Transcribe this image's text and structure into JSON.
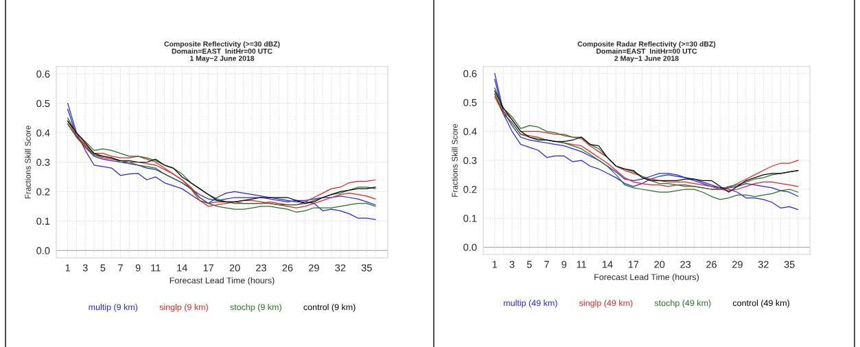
{
  "chart_data": [
    {
      "type": "line",
      "title": "Composite Reflectivity (>=30 dBZ)",
      "subtitle": "Domain=EAST  InitHr=00 UTC\n1 May−2 June 2018",
      "xlabel": "Forecast Lead Time (hours)",
      "ylabel": "Fractions Skill Score",
      "x": [
        1,
        2,
        3,
        4,
        5,
        6,
        7,
        8,
        9,
        10,
        11,
        12,
        13,
        14,
        15,
        16,
        17,
        18,
        19,
        20,
        21,
        22,
        23,
        24,
        25,
        26,
        27,
        28,
        29,
        30,
        31,
        32,
        33,
        34,
        35,
        36
      ],
      "xlim": [
        -0.3,
        37.4
      ],
      "ylim": [
        -0.025,
        0.625
      ],
      "xticks": [
        1,
        {
          "value": 2,
          "label": null
        },
        3,
        {
          "value": 4,
          "label": null
        },
        5,
        {
          "value": 6,
          "label": null
        },
        7,
        {
          "value": 8,
          "label": null
        },
        9,
        {
          "value": 10,
          "label": null
        },
        11,
        {
          "value": 12,
          "label": null
        },
        {
          "value": 13,
          "label": null
        },
        14,
        {
          "value": 15,
          "label": null
        },
        {
          "value": 16,
          "label": null
        },
        17,
        {
          "value": 18,
          "label": null
        },
        {
          "value": 19,
          "label": null
        },
        20,
        {
          "value": 21,
          "label": null
        },
        {
          "value": 22,
          "label": null
        },
        23,
        {
          "value": 24,
          "label": null
        },
        {
          "value": 25,
          "label": null
        },
        26,
        {
          "value": 27,
          "label": null
        },
        {
          "value": 28,
          "label": null
        },
        29,
        {
          "value": 30,
          "label": null
        },
        {
          "value": 31,
          "label": null
        },
        32,
        {
          "value": 33,
          "label": null
        },
        {
          "value": 34,
          "label": null
        },
        35,
        {
          "value": 36,
          "label": null
        }
      ],
      "yticks": [
        {
          "value": 0,
          "label": "0.0"
        },
        0.1,
        0.2,
        0.3,
        0.4,
        0.5,
        0.6
      ],
      "grid": true,
      "legend": "bottom",
      "line_style": "solid",
      "marker": "none",
      "ref_lines": [
        {
          "axis": "y",
          "value": 0,
          "color": "#a0a0a0"
        }
      ],
      "series": [
        {
          "name": "multip (9 km)",
          "color": "#2424e0",
          "values": [
            0.48,
            0.39,
            0.35,
            0.32,
            0.31,
            0.305,
            0.3,
            0.295,
            0.29,
            0.28,
            0.275,
            0.26,
            0.245,
            0.23,
            0.21,
            0.19,
            0.175,
            0.17,
            0.175,
            0.18,
            0.18,
            0.18,
            0.18,
            0.175,
            0.17,
            0.165,
            0.17,
            0.17,
            0.175,
            0.18,
            0.18,
            0.185,
            0.18,
            0.175,
            0.165,
            0.155
          ]
        },
        {
          "color": "#2424e0",
          "values": [
            0.5,
            0.4,
            0.34,
            0.29,
            0.285,
            0.28,
            0.255,
            0.26,
            0.262,
            0.24,
            0.25,
            0.23,
            0.22,
            0.21,
            0.19,
            0.17,
            0.16,
            0.18,
            0.195,
            0.2,
            0.195,
            0.19,
            0.185,
            0.18,
            0.175,
            0.17,
            0.165,
            0.165,
            0.16,
            0.135,
            0.14,
            0.135,
            0.125,
            0.11,
            0.11,
            0.105
          ]
        },
        {
          "name": "singlp (9 km)",
          "color": "#e02424",
          "values": [
            0.44,
            0.39,
            0.36,
            0.33,
            0.33,
            0.32,
            0.315,
            0.315,
            0.32,
            0.31,
            0.3,
            0.28,
            0.26,
            0.24,
            0.215,
            0.18,
            0.16,
            0.165,
            0.165,
            0.165,
            0.16,
            0.16,
            0.16,
            0.165,
            0.16,
            0.155,
            0.155,
            0.165,
            0.18,
            0.195,
            0.21,
            0.215,
            0.23,
            0.235,
            0.235,
            0.24
          ]
        },
        {
          "color": "#e02424",
          "values": [
            0.43,
            0.385,
            0.35,
            0.325,
            0.315,
            0.31,
            0.305,
            0.3,
            0.3,
            0.295,
            0.29,
            0.275,
            0.26,
            0.24,
            0.21,
            0.17,
            0.15,
            0.155,
            0.16,
            0.165,
            0.17,
            0.17,
            0.165,
            0.16,
            0.155,
            0.15,
            0.145,
            0.15,
            0.16,
            0.17,
            0.18,
            0.19,
            0.195,
            0.19,
            0.185,
            0.175
          ]
        },
        {
          "name": "stochp (9 km)",
          "color": "#247024",
          "values": [
            0.43,
            0.385,
            0.355,
            0.325,
            0.32,
            0.315,
            0.3,
            0.3,
            0.29,
            0.285,
            0.28,
            0.26,
            0.245,
            0.23,
            0.21,
            0.18,
            0.16,
            0.15,
            0.145,
            0.14,
            0.14,
            0.145,
            0.15,
            0.15,
            0.145,
            0.14,
            0.13,
            0.135,
            0.145,
            0.145,
            0.145,
            0.15,
            0.155,
            0.16,
            0.16,
            0.15
          ]
        },
        {
          "color": "#247024",
          "values": [
            0.45,
            0.4,
            0.37,
            0.34,
            0.345,
            0.34,
            0.33,
            0.32,
            0.32,
            0.315,
            0.305,
            0.29,
            0.28,
            0.26,
            0.23,
            0.21,
            0.19,
            0.175,
            0.165,
            0.16,
            0.16,
            0.16,
            0.16,
            0.16,
            0.155,
            0.155,
            0.155,
            0.16,
            0.17,
            0.18,
            0.19,
            0.195,
            0.205,
            0.215,
            0.215,
            0.21
          ]
        },
        {
          "name": "control (9 km)",
          "color": "#000000",
          "values": [
            0.44,
            0.4,
            0.365,
            0.33,
            0.32,
            0.315,
            0.305,
            0.305,
            0.3,
            0.3,
            0.31,
            0.29,
            0.28,
            0.25,
            0.23,
            0.21,
            0.19,
            0.17,
            0.165,
            0.165,
            0.17,
            0.175,
            0.18,
            0.18,
            0.18,
            0.18,
            0.17,
            0.16,
            0.165,
            0.18,
            0.19,
            0.2,
            0.205,
            0.21,
            0.21,
            0.215
          ]
        }
      ]
    },
    {
      "type": "line",
      "title": "Composite Radar Reflectivity (>=30 dBZ)",
      "subtitle": "Domain=EAST  InitHr=00 UTC\n2 May−1 June 2018",
      "xlabel": "Forecast Lead Time (hours)",
      "ylabel": "Fractions Skill Score",
      "x": [
        1,
        2,
        3,
        4,
        5,
        6,
        7,
        8,
        9,
        10,
        11,
        12,
        13,
        14,
        15,
        16,
        17,
        18,
        19,
        20,
        21,
        22,
        23,
        24,
        25,
        26,
        27,
        28,
        29,
        30,
        31,
        32,
        33,
        34,
        35,
        36
      ],
      "xlim": [
        -0.33,
        37.36
      ],
      "ylim": [
        -0.025,
        0.624
      ],
      "xticks": [
        1,
        {
          "value": 2,
          "label": null
        },
        3,
        {
          "value": 4,
          "label": null
        },
        5,
        {
          "value": 6,
          "label": null
        },
        7,
        {
          "value": 8,
          "label": null
        },
        9,
        {
          "value": 10,
          "label": null
        },
        11,
        {
          "value": 12,
          "label": null
        },
        {
          "value": 13,
          "label": null
        },
        14,
        {
          "value": 15,
          "label": null
        },
        {
          "value": 16,
          "label": null
        },
        17,
        {
          "value": 18,
          "label": null
        },
        {
          "value": 19,
          "label": null
        },
        20,
        {
          "value": 21,
          "label": null
        },
        {
          "value": 22,
          "label": null
        },
        23,
        {
          "value": 24,
          "label": null
        },
        {
          "value": 25,
          "label": null
        },
        26,
        {
          "value": 27,
          "label": null
        },
        {
          "value": 28,
          "label": null
        },
        29,
        {
          "value": 30,
          "label": null
        },
        {
          "value": 31,
          "label": null
        },
        32,
        {
          "value": 33,
          "label": null
        },
        {
          "value": 34,
          "label": null
        },
        35,
        {
          "value": 36,
          "label": null
        }
      ],
      "yticks": [
        {
          "value": 0,
          "label": "0.0"
        },
        0.1,
        0.2,
        0.3,
        0.4,
        0.5,
        0.6
      ],
      "grid": true,
      "legend": "bottom",
      "line_style": "solid",
      "marker": "none",
      "ref_lines": [
        {
          "axis": "y",
          "value": 0,
          "color": "#a0a0a0"
        }
      ],
      "series": [
        {
          "name": "multip (49 km)",
          "color": "#2424e0",
          "values": [
            0.6,
            0.47,
            0.42,
            0.38,
            0.37,
            0.365,
            0.36,
            0.355,
            0.35,
            0.34,
            0.33,
            0.315,
            0.3,
            0.28,
            0.26,
            0.235,
            0.23,
            0.235,
            0.245,
            0.255,
            0.255,
            0.25,
            0.24,
            0.23,
            0.22,
            0.21,
            0.205,
            0.205,
            0.21,
            0.22,
            0.215,
            0.21,
            0.205,
            0.195,
            0.19,
            0.175
          ]
        },
        {
          "color": "#2424e0",
          "values": [
            0.58,
            0.46,
            0.4,
            0.355,
            0.345,
            0.335,
            0.31,
            0.315,
            0.315,
            0.295,
            0.3,
            0.28,
            0.27,
            0.255,
            0.24,
            0.22,
            0.21,
            0.22,
            0.235,
            0.245,
            0.25,
            0.245,
            0.24,
            0.235,
            0.225,
            0.215,
            0.205,
            0.2,
            0.19,
            0.17,
            0.17,
            0.165,
            0.155,
            0.135,
            0.14,
            0.13
          ]
        },
        {
          "name": "singlp (49 km)",
          "color": "#e02424",
          "values": [
            0.53,
            0.47,
            0.44,
            0.4,
            0.4,
            0.4,
            0.395,
            0.39,
            0.39,
            0.38,
            0.375,
            0.35,
            0.33,
            0.31,
            0.28,
            0.265,
            0.255,
            0.245,
            0.235,
            0.23,
            0.225,
            0.225,
            0.225,
            0.22,
            0.215,
            0.21,
            0.2,
            0.205,
            0.22,
            0.235,
            0.25,
            0.265,
            0.28,
            0.29,
            0.29,
            0.3
          ]
        },
        {
          "color": "#e02424",
          "values": [
            0.52,
            0.46,
            0.43,
            0.39,
            0.385,
            0.38,
            0.37,
            0.365,
            0.36,
            0.355,
            0.35,
            0.33,
            0.31,
            0.29,
            0.265,
            0.24,
            0.225,
            0.22,
            0.215,
            0.215,
            0.21,
            0.215,
            0.215,
            0.21,
            0.205,
            0.2,
            0.2,
            0.195,
            0.2,
            0.21,
            0.22,
            0.225,
            0.225,
            0.22,
            0.215,
            0.21
          ]
        },
        {
          "name": "stochp (49 km)",
          "color": "#247024",
          "values": [
            0.53,
            0.46,
            0.43,
            0.39,
            0.38,
            0.375,
            0.37,
            0.365,
            0.36,
            0.35,
            0.34,
            0.32,
            0.3,
            0.28,
            0.25,
            0.215,
            0.205,
            0.2,
            0.195,
            0.19,
            0.19,
            0.195,
            0.2,
            0.2,
            0.19,
            0.175,
            0.165,
            0.17,
            0.18,
            0.18,
            0.175,
            0.18,
            0.185,
            0.195,
            0.2,
            0.19
          ]
        },
        {
          "color": "#247024",
          "values": [
            0.55,
            0.48,
            0.45,
            0.41,
            0.42,
            0.415,
            0.4,
            0.395,
            0.385,
            0.38,
            0.38,
            0.355,
            0.34,
            0.31,
            0.28,
            0.27,
            0.26,
            0.245,
            0.23,
            0.22,
            0.22,
            0.215,
            0.21,
            0.21,
            0.205,
            0.2,
            0.2,
            0.21,
            0.215,
            0.225,
            0.235,
            0.24,
            0.25,
            0.255,
            0.26,
            0.265
          ]
        },
        {
          "name": "control (49 km)",
          "color": "#000000",
          "values": [
            0.54,
            0.48,
            0.44,
            0.4,
            0.38,
            0.37,
            0.37,
            0.365,
            0.365,
            0.37,
            0.38,
            0.355,
            0.35,
            0.31,
            0.28,
            0.27,
            0.265,
            0.24,
            0.23,
            0.23,
            0.23,
            0.23,
            0.235,
            0.235,
            0.23,
            0.23,
            0.21,
            0.19,
            0.21,
            0.23,
            0.24,
            0.25,
            0.255,
            0.255,
            0.26,
            0.265
          ]
        }
      ]
    }
  ]
}
